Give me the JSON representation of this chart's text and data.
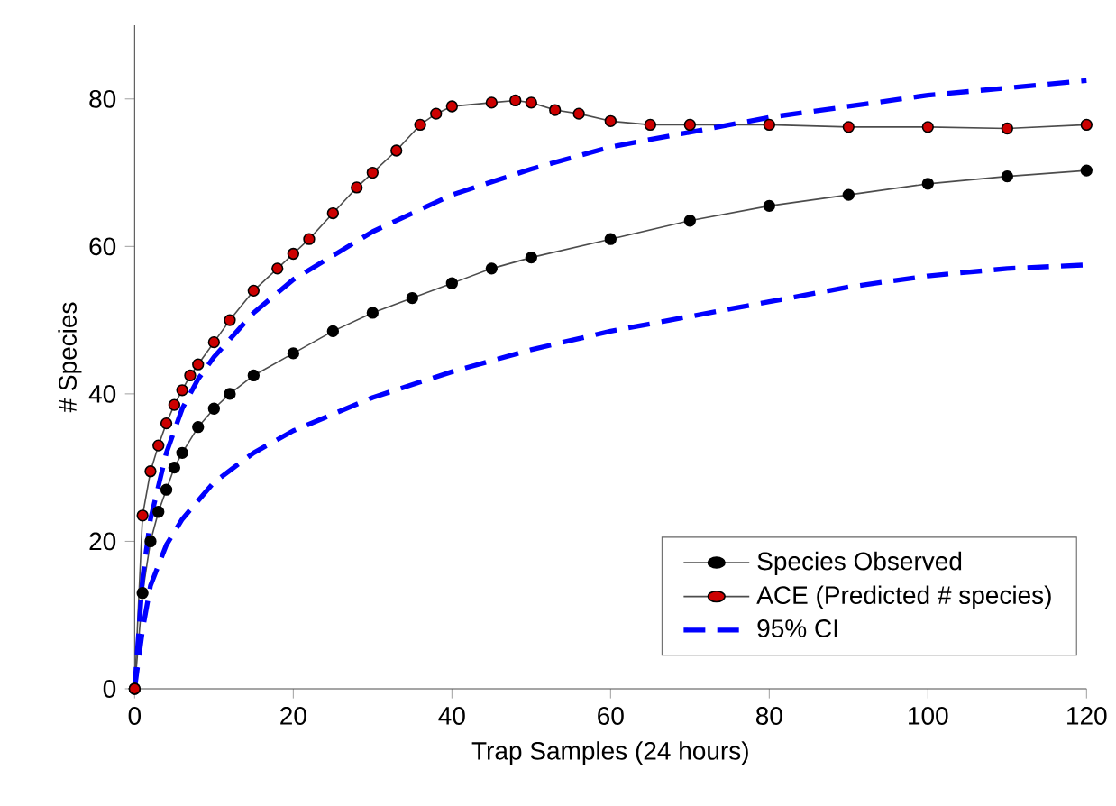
{
  "chart_data": {
    "type": "line",
    "xlabel": "Trap Samples (24 hours)",
    "ylabel": "# Species",
    "xlim": [
      0,
      120
    ],
    "ylim": [
      0,
      90
    ],
    "xticks": [
      0,
      20,
      40,
      60,
      80,
      100,
      120
    ],
    "yticks": [
      0,
      20,
      40,
      60,
      80
    ],
    "grid": false,
    "legend": "bottom right",
    "series": [
      {
        "name": "Species Observed",
        "color": "#000000",
        "marker": "circle",
        "line_style": "solid",
        "x": [
          0,
          1,
          2,
          3,
          4,
          5,
          6,
          8,
          10,
          12,
          15,
          20,
          25,
          30,
          35,
          40,
          45,
          50,
          60,
          70,
          80,
          90,
          100,
          110,
          120
        ],
        "values": [
          0,
          13,
          20,
          24,
          27,
          30,
          32,
          35.5,
          38,
          40,
          42.5,
          45.5,
          48.5,
          51,
          53,
          55,
          57,
          58.5,
          61,
          63.5,
          65.5,
          67,
          68.5,
          69.5,
          70.3
        ]
      },
      {
        "name": "ACE (Predicted # species)",
        "color": "#cc0000",
        "marker": "circle",
        "line_style": "solid",
        "x": [
          0,
          1,
          2,
          3,
          4,
          5,
          6,
          7,
          8,
          10,
          12,
          15,
          18,
          20,
          22,
          25,
          28,
          30,
          33,
          36,
          38,
          40,
          45,
          48,
          50,
          53,
          56,
          60,
          65,
          70,
          80,
          90,
          100,
          110,
          120
        ],
        "values": [
          0,
          23.5,
          29.5,
          33,
          36,
          38.5,
          40.5,
          42.5,
          44,
          47,
          50,
          54,
          57,
          59,
          61,
          64.5,
          68,
          70,
          73,
          76.5,
          78,
          79,
          79.5,
          79.8,
          79.5,
          78.5,
          78,
          77,
          76.5,
          76.5,
          76.5,
          76.2,
          76.2,
          76,
          76.5
        ]
      },
      {
        "name": "95% CI",
        "color": "#0000ff",
        "marker": "none",
        "line_style": "dashed",
        "x": [
          0,
          1,
          2,
          4,
          6,
          8,
          10,
          15,
          20,
          30,
          40,
          50,
          60,
          70,
          80,
          90,
          100,
          110,
          120
        ],
        "values": [
          0,
          15,
          23,
          32,
          38,
          42,
          45,
          51,
          55.5,
          62,
          67,
          70.5,
          73.5,
          75.5,
          77.5,
          79,
          80.5,
          81.5,
          82.5
        ]
      },
      {
        "color": "#0000ff",
        "marker": "none",
        "line_style": "dashed",
        "x": [
          0,
          1,
          2,
          4,
          6,
          10,
          15,
          20,
          30,
          40,
          50,
          60,
          70,
          80,
          90,
          100,
          110,
          120
        ],
        "values": [
          0,
          8,
          14,
          19.5,
          23,
          28,
          32,
          35,
          39.5,
          43,
          46,
          48.5,
          50.5,
          52.5,
          54.5,
          56,
          57,
          57.5
        ]
      }
    ]
  }
}
